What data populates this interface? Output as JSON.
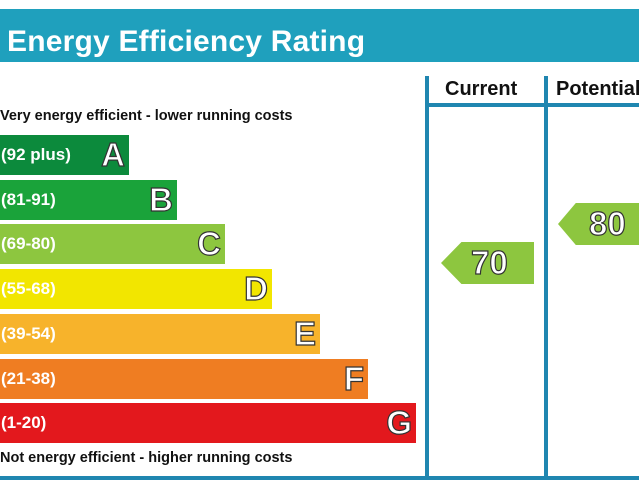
{
  "title": "Energy Efficiency Rating",
  "columns": {
    "current": "Current",
    "potential": "Potential"
  },
  "captions": {
    "top": "Very energy efficient - lower running costs",
    "bottom": "Not energy efficient - higher running costs"
  },
  "chart_data": {
    "type": "bar",
    "title": "Energy Efficiency Rating",
    "bands": [
      {
        "letter": "A",
        "range": "(92 plus)",
        "color": "#0c8a3c"
      },
      {
        "letter": "B",
        "range": "(81-91)",
        "color": "#1aa33a"
      },
      {
        "letter": "C",
        "range": "(69-80)",
        "color": "#8dc63f"
      },
      {
        "letter": "D",
        "range": "(55-68)",
        "color": "#f2e600"
      },
      {
        "letter": "E",
        "range": "(39-54)",
        "color": "#f7b32b"
      },
      {
        "letter": "F",
        "range": "(21-38)",
        "color": "#ef7d22"
      },
      {
        "letter": "G",
        "range": "(1-20)",
        "color": "#e3181d"
      }
    ],
    "ratings": {
      "current": {
        "value": 70,
        "band": "C",
        "color": "#8dc63f"
      },
      "potential": {
        "value": 80,
        "band": "C",
        "color": "#8dc63f"
      }
    }
  }
}
